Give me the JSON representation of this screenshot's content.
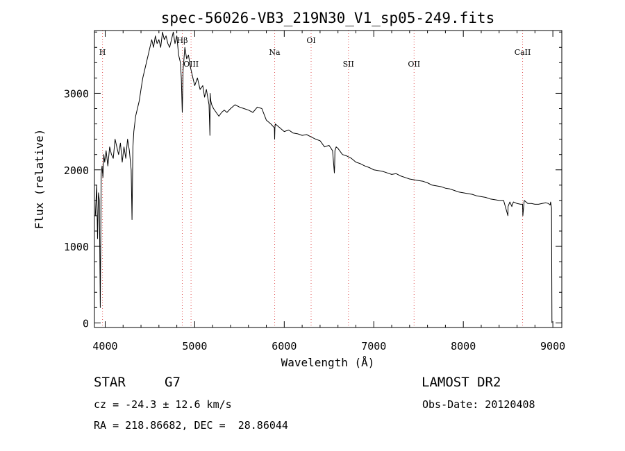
{
  "chart_data": {
    "type": "line",
    "title": "spec-56026-VB3_219N30_V1_sp05-249.fits",
    "xlabel": "Wavelength (Å)",
    "ylabel": "Flux (relative)",
    "xlim": [
      3880,
      9100
    ],
    "ylim": [
      -60,
      3820
    ],
    "xticks": [
      4000,
      5000,
      6000,
      7000,
      8000,
      9000
    ],
    "yticks": [
      0,
      1000,
      2000,
      3000
    ],
    "grid": false,
    "series": [
      {
        "color": "#000000",
        "x": [
          3890,
          3905,
          3915,
          3925,
          3935,
          3945,
          3955,
          3965,
          3975,
          3985,
          3995,
          4010,
          4030,
          4050,
          4070,
          4090,
          4110,
          4130,
          4150,
          4170,
          4190,
          4210,
          4230,
          4250,
          4270,
          4290,
          4300,
          4310,
          4320,
          4340,
          4360,
          4380,
          4400,
          4420,
          4440,
          4460,
          4480,
          4500,
          4520,
          4540,
          4560,
          4580,
          4600,
          4620,
          4640,
          4660,
          4680,
          4700,
          4720,
          4740,
          4760,
          4780,
          4800,
          4820,
          4840,
          4850,
          4860,
          4861,
          4870,
          4890,
          4910,
          4930,
          4950,
          4970,
          5000,
          5030,
          5060,
          5090,
          5110,
          5130,
          5160,
          5170,
          5172,
          5175,
          5180,
          5190,
          5210,
          5240,
          5270,
          5300,
          5330,
          5360,
          5400,
          5450,
          5500,
          5550,
          5600,
          5650,
          5700,
          5750,
          5800,
          5850,
          5890,
          5893,
          5896,
          5900,
          5950,
          6000,
          6050,
          6100,
          6150,
          6200,
          6250,
          6300,
          6350,
          6400,
          6450,
          6500,
          6540,
          6560,
          6563,
          6566,
          6580,
          6600,
          6650,
          6700,
          6750,
          6800,
          6850,
          6900,
          6950,
          7000,
          7050,
          7100,
          7150,
          7200,
          7250,
          7300,
          7350,
          7400,
          7450,
          7500,
          7550,
          7600,
          7650,
          7700,
          7750,
          7800,
          7850,
          7900,
          7950,
          8000,
          8050,
          8100,
          8150,
          8200,
          8250,
          8300,
          8350,
          8400,
          8450,
          8498,
          8500,
          8520,
          8542,
          8545,
          8560,
          8600,
          8640,
          8662,
          8665,
          8680,
          8720,
          8760,
          8800,
          8840,
          8880,
          8920,
          8950,
          8970,
          8975,
          8985,
          8990
        ],
        "y": [
          1400,
          1800,
          1100,
          1700,
          1600,
          200,
          1950,
          2050,
          1900,
          2200,
          2100,
          2250,
          2050,
          2300,
          2200,
          2150,
          2400,
          2300,
          2200,
          2350,
          2100,
          2300,
          2150,
          2400,
          2250,
          2000,
          1350,
          2300,
          2500,
          2700,
          2800,
          2900,
          3050,
          3200,
          3300,
          3400,
          3500,
          3600,
          3700,
          3600,
          3750,
          3650,
          3700,
          3600,
          3800,
          3700,
          3750,
          3650,
          3600,
          3700,
          3800,
          3650,
          3750,
          3500,
          3400,
          3200,
          2800,
          2750,
          3300,
          3600,
          3450,
          3500,
          3350,
          3250,
          3100,
          3200,
          3050,
          3100,
          2950,
          3050,
          2850,
          2450,
          3000,
          2950,
          2900,
          2850,
          2800,
          2750,
          2700,
          2750,
          2780,
          2750,
          2800,
          2850,
          2820,
          2800,
          2780,
          2750,
          2820,
          2800,
          2650,
          2600,
          2550,
          2400,
          2550,
          2600,
          2550,
          2500,
          2520,
          2480,
          2470,
          2450,
          2460,
          2430,
          2400,
          2380,
          2300,
          2320,
          2250,
          1960,
          2050,
          2250,
          2300,
          2280,
          2200,
          2180,
          2150,
          2100,
          2080,
          2050,
          2030,
          2000,
          1990,
          1980,
          1960,
          1940,
          1950,
          1920,
          1900,
          1880,
          1870,
          1860,
          1850,
          1830,
          1800,
          1790,
          1780,
          1760,
          1750,
          1730,
          1710,
          1700,
          1690,
          1680,
          1660,
          1650,
          1640,
          1620,
          1610,
          1600,
          1600,
          1400,
          1520,
          1580,
          1520,
          1540,
          1580,
          1560,
          1550,
          1550,
          1400,
          1600,
          1560,
          1560,
          1550,
          1550,
          1560,
          1570,
          1560,
          1540,
          1580,
          1500,
          0
        ]
      }
    ],
    "annotations": [
      {
        "label": "H",
        "x": 3970
      },
      {
        "label": "Hβ",
        "x": 4861
      },
      {
        "label": "OIII",
        "x": 4959
      },
      {
        "label": "Na",
        "x": 5893
      },
      {
        "label": "OI",
        "x": 6300
      },
      {
        "label": "SII",
        "x": 6717
      },
      {
        "label": "OII",
        "x": 7450
      },
      {
        "label": "CaII",
        "x": 8662
      }
    ]
  },
  "footer": {
    "object_class": "STAR",
    "subclass": "G7",
    "survey": "LAMOST DR2",
    "cz": "cz = -24.3 ± 12.6 km/s",
    "obs_date": "Obs-Date: 20120408",
    "radec": "RA = 218.86682, DEC =  28.86044"
  }
}
